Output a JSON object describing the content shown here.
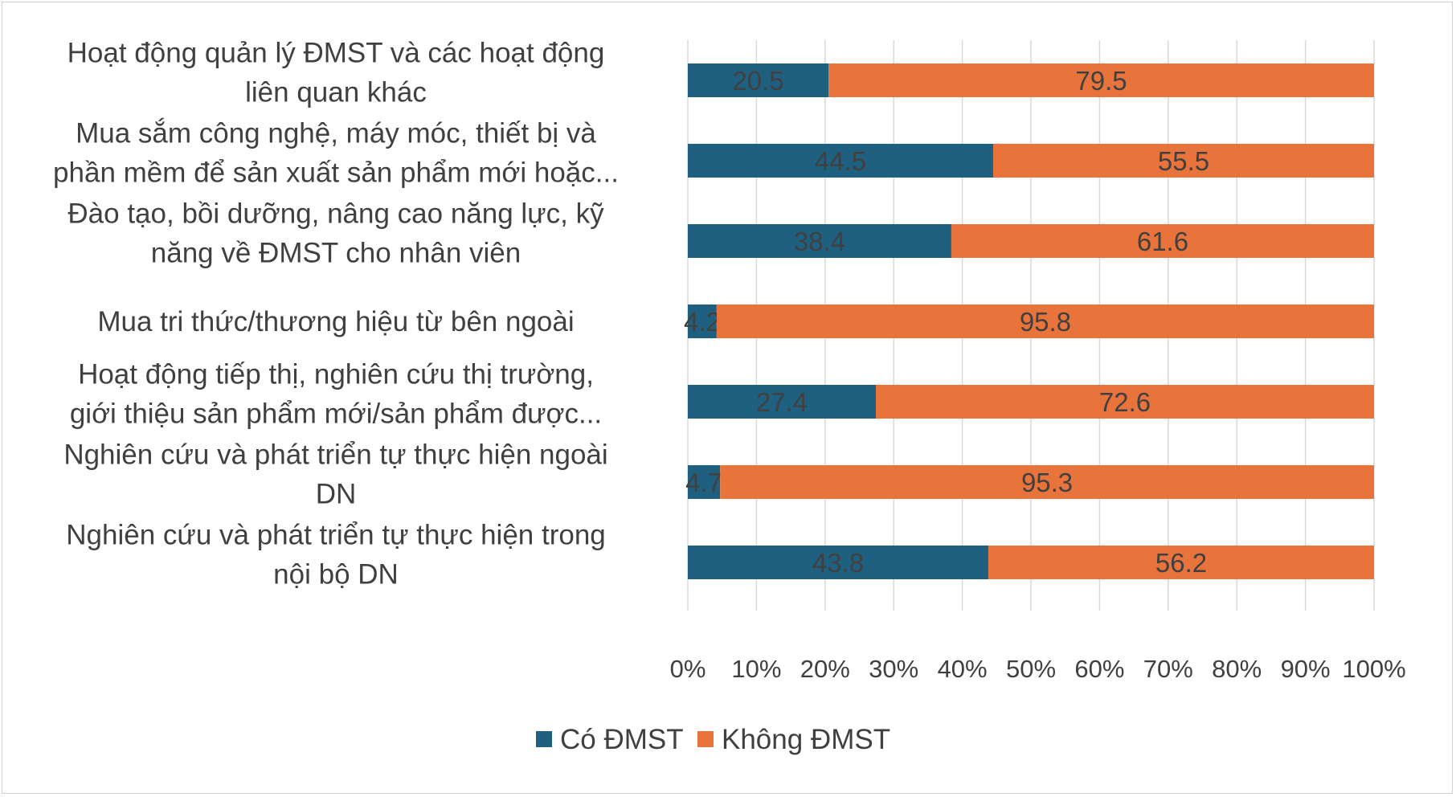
{
  "chart_data": {
    "type": "bar",
    "orientation": "horizontal",
    "stacked": "percent",
    "categories": [
      [
        "Hoạt động quản lý ĐMST và các hoạt động",
        "liên quan khác"
      ],
      [
        "Mua sắm công nghệ, máy móc, thiết bị và",
        "phần mềm để sản xuất sản phẩm mới hoặc..."
      ],
      [
        "Đào tạo, bồi dưỡng, nâng cao năng lực, kỹ",
        "năng về ĐMST cho nhân viên"
      ],
      [
        "Mua tri thức/thương hiệu từ bên ngoài"
      ],
      [
        "Hoạt động tiếp thị, nghiên cứu thị trường,",
        "giới thiệu sản phẩm mới/sản phẩm được..."
      ],
      [
        "Nghiên cứu và phát triển tự thực hiện ngoài",
        "DN"
      ],
      [
        "Nghiên cứu và phát triển tự thực hiện trong",
        "nội bộ DN"
      ]
    ],
    "series": [
      {
        "name": "Có ĐMST",
        "color": "#1f5f80",
        "values": [
          20.5,
          44.5,
          38.4,
          4.2,
          27.4,
          4.7,
          43.8
        ]
      },
      {
        "name": "Không ĐMST",
        "color": "#e8743b",
        "values": [
          79.5,
          55.5,
          61.6,
          95.8,
          72.6,
          95.3,
          56.2
        ]
      }
    ],
    "x_ticks": [
      "0%",
      "10%",
      "20%",
      "30%",
      "40%",
      "50%",
      "60%",
      "70%",
      "80%",
      "90%",
      "100%"
    ],
    "xlim": [
      0,
      100
    ],
    "grid": "vertical",
    "legend_position": "bottom"
  }
}
